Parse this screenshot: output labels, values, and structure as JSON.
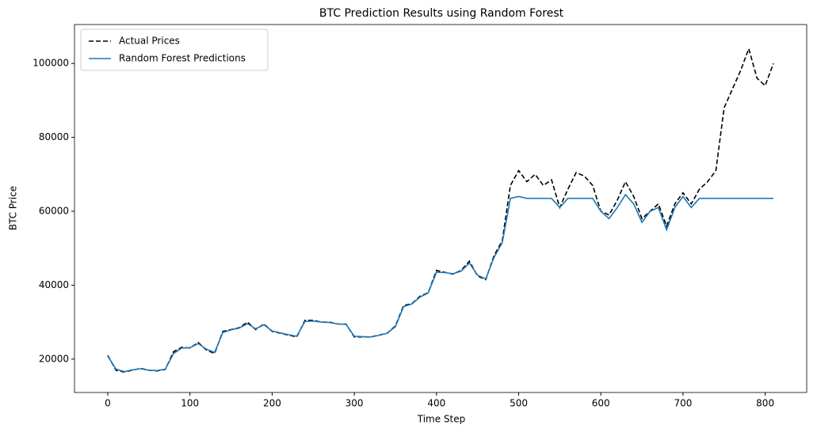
{
  "chart_data": {
    "type": "line",
    "title": "BTC Prediction Results using Random Forest",
    "xlabel": "Time Step",
    "ylabel": "BTC Price",
    "x": [
      0,
      10,
      20,
      30,
      40,
      50,
      60,
      70,
      80,
      90,
      100,
      110,
      120,
      130,
      140,
      150,
      160,
      170,
      180,
      190,
      200,
      210,
      220,
      230,
      240,
      250,
      260,
      270,
      280,
      290,
      300,
      310,
      320,
      330,
      340,
      350,
      360,
      370,
      380,
      390,
      400,
      410,
      420,
      430,
      440,
      450,
      460,
      470,
      480,
      490,
      500,
      510,
      520,
      530,
      540,
      550,
      560,
      570,
      580,
      590,
      600,
      610,
      620,
      630,
      640,
      650,
      660,
      670,
      680,
      690,
      700,
      710,
      720,
      730,
      740,
      750,
      760,
      770,
      780,
      790,
      800,
      810
    ],
    "series": [
      {
        "name": "Actual Prices",
        "color": "#000000",
        "dash": true,
        "values": [
          21000,
          17000,
          16500,
          17000,
          17500,
          17000,
          16800,
          17200,
          22000,
          23200,
          23000,
          24500,
          22500,
          21500,
          27500,
          28000,
          28500,
          30000,
          28000,
          29500,
          27500,
          27000,
          26500,
          26000,
          30500,
          30500,
          30000,
          30000,
          29500,
          29500,
          26000,
          26000,
          26000,
          26500,
          27000,
          29000,
          34500,
          35000,
          37000,
          38000,
          44000,
          43500,
          43000,
          44000,
          46500,
          42500,
          41500,
          48000,
          52000,
          67000,
          71000,
          68000,
          70000,
          67000,
          68500,
          61000,
          66000,
          70500,
          69500,
          67000,
          60000,
          59000,
          63000,
          68000,
          64000,
          58000,
          60000,
          62000,
          56000,
          62000,
          65000,
          62000,
          66000,
          68000,
          71000,
          88000,
          93000,
          98000,
          104000,
          96000,
          94000,
          100000
        ]
      },
      {
        "name": "Random Forest Predictions",
        "color": "#1f77b4",
        "dash": false,
        "values": [
          20800,
          17300,
          16600,
          17100,
          17400,
          17000,
          16900,
          17300,
          21500,
          23000,
          23100,
          24200,
          22700,
          21800,
          27200,
          27900,
          28400,
          29600,
          28200,
          29300,
          27600,
          27100,
          26600,
          26200,
          30200,
          30300,
          30000,
          29900,
          29500,
          29400,
          26200,
          26100,
          26000,
          26400,
          27000,
          28800,
          34200,
          34900,
          36800,
          37900,
          43500,
          43400,
          43100,
          43800,
          46000,
          42700,
          41700,
          47500,
          51500,
          63500,
          64000,
          63500,
          63500,
          63500,
          63500,
          61000,
          63500,
          63500,
          63500,
          63500,
          60000,
          58000,
          61000,
          64500,
          62000,
          57000,
          60000,
          61000,
          55000,
          61000,
          64000,
          61000,
          63500,
          63500,
          63500,
          63500,
          63500,
          63500,
          63500,
          63500,
          63500,
          63500
        ]
      }
    ],
    "xlim": [
      -40.5,
      850.5
    ],
    "xticks": [
      0,
      100,
      200,
      300,
      400,
      500,
      600,
      700,
      800
    ],
    "ylim": [
      10975,
      110525
    ],
    "yticks": [
      20000,
      40000,
      60000,
      80000,
      100000
    ],
    "legend": "upper left",
    "grid": false
  }
}
